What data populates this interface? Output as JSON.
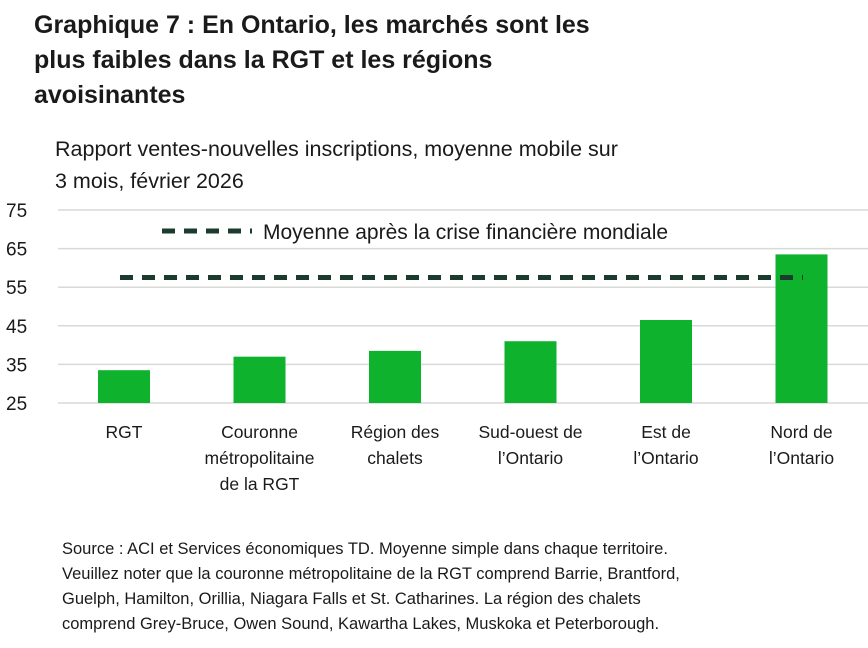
{
  "title": "Graphique 7 : En Ontario, les marchés sont les plus faibles dans la RGT et les régions avoisinantes",
  "title_lines": [
    "Graphique 7 : En Ontario, les marchés sont les",
    "plus faibles dans la RGT et les régions",
    "avoisinantes"
  ],
  "subtitle_lines": [
    "Rapport ventes-nouvelles inscriptions, moyenne mobile sur",
    "3 mois, février 2026"
  ],
  "footnote_lines": [
    "Source : ACI et Services économiques TD. Moyenne simple dans chaque territoire.",
    "Veuillez noter que la couronne métropolitaine de la RGT comprend Barrie, Brantford,",
    "Guelph, Hamilton, Orillia, Niagara Falls et St. Catharines. La région des chalets",
    "comprend Grey-Bruce, Owen Sound, Kawartha Lakes, Muskoka et Peterborough."
  ],
  "colors": {
    "bar": "#0fb22d",
    "reference_line": "#1b3b2c",
    "grid": "#d9d9d9"
  },
  "chart_data": {
    "type": "bar",
    "title": "Graphique 7 : En Ontario, les marchés sont les plus faibles dans la RGT et les régions avoisinantes",
    "ylabel": "Rapport ventes-nouvelles inscriptions, moyenne mobile sur 3 mois, février 2026",
    "categories": [
      [
        "RGT"
      ],
      [
        "Couronne",
        "métropolitaine",
        "de la RGT"
      ],
      [
        "Région des",
        "chalets"
      ],
      [
        "Sud-ouest de",
        "l’Ontario"
      ],
      [
        "Est de",
        "l’Ontario"
      ],
      [
        "Nord de",
        "l’Ontario"
      ]
    ],
    "values": [
      33.5,
      37,
      38.5,
      41,
      46.5,
      63.5
    ],
    "ylim": [
      25,
      75
    ],
    "yticks": [
      25,
      35,
      45,
      55,
      65,
      75
    ],
    "grid": true,
    "reference_line": {
      "name": "Moyenne après la crise financière mondiale",
      "value": 57.5,
      "style": "dashed"
    },
    "legend": {
      "position": "top",
      "entries": [
        "Moyenne après la crise financière mondiale"
      ]
    }
  }
}
